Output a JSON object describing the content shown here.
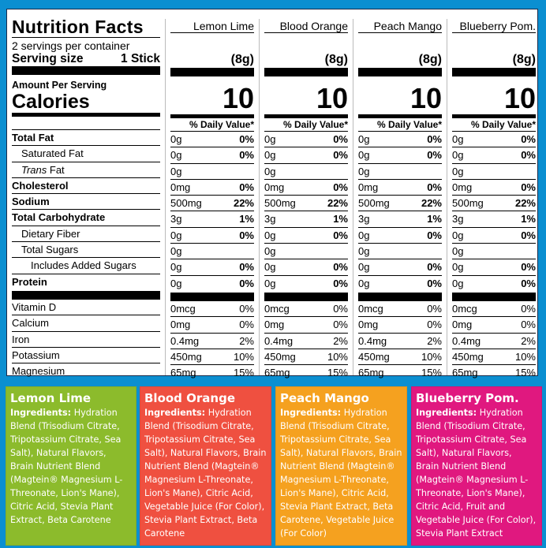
{
  "label": {
    "title": "Nutrition Facts",
    "servings_per_container": "2 servings per container",
    "serving_size_label": "Serving size",
    "serving_size_value": "1 Stick",
    "amount_per_serving": "Amount Per Serving",
    "calories_label": "Calories",
    "daily_value_header": "% Daily Value*",
    "nutrient_rows": [
      {
        "name": "Total Fat",
        "style": "bold"
      },
      {
        "name": "Saturated Fat",
        "style": "indent1"
      },
      {
        "name": "Trans Fat",
        "style": "indent1-italic"
      },
      {
        "name": "Cholesterol",
        "style": "bold"
      },
      {
        "name": "Sodium",
        "style": "bold"
      },
      {
        "name": "Total Carbohydrate",
        "style": "bold"
      },
      {
        "name": "Dietary Fiber",
        "style": "indent1"
      },
      {
        "name": "Total Sugars",
        "style": "indent1"
      },
      {
        "name": "Includes Added Sugars",
        "style": "indent2"
      },
      {
        "name": "Protein",
        "style": "bold"
      }
    ],
    "vitamin_rows": [
      {
        "name": "Vitamin D"
      },
      {
        "name": "Calcium"
      },
      {
        "name": "Iron"
      },
      {
        "name": "Potassium"
      },
      {
        "name": "Magnesium"
      }
    ]
  },
  "flavors": [
    {
      "name": "Lemon Lime",
      "serving_grams": "(8g)",
      "calories": "10",
      "nutrients": [
        [
          "0g",
          "0%"
        ],
        [
          "0g",
          "0%"
        ],
        [
          "0g",
          ""
        ],
        [
          "0mg",
          "0%"
        ],
        [
          "500mg",
          "22%"
        ],
        [
          "3g",
          "1%"
        ],
        [
          "0g",
          "0%"
        ],
        [
          "0g",
          ""
        ],
        [
          "0g",
          "0%"
        ],
        [
          "0g",
          "0%"
        ]
      ],
      "vitamins": [
        [
          "0mcg",
          "0%"
        ],
        [
          "0mg",
          "0%"
        ],
        [
          "0.4mg",
          "2%"
        ],
        [
          "450mg",
          "10%"
        ],
        [
          "65mg",
          "15%"
        ]
      ],
      "color": "#8cbb2c",
      "ingredients_label": "Ingredients:",
      "ingredients": "Hydration Blend (Trisodium Citrate, Tripotassium Citrate, Sea Salt), Natural Flavors, Brain Nutrient Blend (Magtein® Magnesium L-Threonate, Lion's Mane), Citric Acid, Stevia Plant Extract, Beta Carotene"
    },
    {
      "name": "Blood Orange",
      "serving_grams": "(8g)",
      "calories": "10",
      "nutrients": [
        [
          "0g",
          "0%"
        ],
        [
          "0g",
          "0%"
        ],
        [
          "0g",
          ""
        ],
        [
          "0mg",
          "0%"
        ],
        [
          "500mg",
          "22%"
        ],
        [
          "3g",
          "1%"
        ],
        [
          "0g",
          "0%"
        ],
        [
          "0g",
          ""
        ],
        [
          "0g",
          "0%"
        ],
        [
          "0g",
          "0%"
        ]
      ],
      "vitamins": [
        [
          "0mcg",
          "0%"
        ],
        [
          "0mg",
          "0%"
        ],
        [
          "0.4mg",
          "2%"
        ],
        [
          "450mg",
          "10%"
        ],
        [
          "65mg",
          "15%"
        ]
      ],
      "color": "#ef5040",
      "ingredients_label": "Ingredients:",
      "ingredients": "Hydration Blend (Trisodium Citrate, Tripotassium Citrate, Sea Salt), Natural Flavors, Brain Nutrient Blend (Magtein® Magnesium L-Threonate, Lion's Mane), Citric Acid, Vegetable Juice (For Color), Stevia Plant Extract, Beta Carotene"
    },
    {
      "name": "Peach Mango",
      "serving_grams": "(8g)",
      "calories": "10",
      "nutrients": [
        [
          "0g",
          "0%"
        ],
        [
          "0g",
          "0%"
        ],
        [
          "0g",
          ""
        ],
        [
          "0mg",
          "0%"
        ],
        [
          "500mg",
          "22%"
        ],
        [
          "3g",
          "1%"
        ],
        [
          "0g",
          "0%"
        ],
        [
          "0g",
          ""
        ],
        [
          "0g",
          "0%"
        ],
        [
          "0g",
          "0%"
        ]
      ],
      "vitamins": [
        [
          "0mcg",
          "0%"
        ],
        [
          "0mg",
          "0%"
        ],
        [
          "0.4mg",
          "2%"
        ],
        [
          "450mg",
          "10%"
        ],
        [
          "65mg",
          "15%"
        ]
      ],
      "color": "#f5a11f",
      "ingredients_label": "Ingredients:",
      "ingredients": "Hydration Blend (Trisodium Citrate, Tripotassium Citrate, Sea Salt), Natural Flavors, Brain Nutrient Blend (Magtein® Magnesium L-Threonate, Lion's Mane), Citric Acid, Stevia Plant Extract, Beta Carotene, Vegetable Juice (For Color)"
    },
    {
      "name": "Blueberry Pom.",
      "serving_grams": "(8g)",
      "calories": "10",
      "nutrients": [
        [
          "0g",
          "0%"
        ],
        [
          "0g",
          "0%"
        ],
        [
          "0g",
          ""
        ],
        [
          "0mg",
          "0%"
        ],
        [
          "500mg",
          "22%"
        ],
        [
          "3g",
          "1%"
        ],
        [
          "0g",
          "0%"
        ],
        [
          "0g",
          ""
        ],
        [
          "0g",
          "0%"
        ],
        [
          "0g",
          "0%"
        ]
      ],
      "vitamins": [
        [
          "0mcg",
          "0%"
        ],
        [
          "0mg",
          "0%"
        ],
        [
          "0.4mg",
          "2%"
        ],
        [
          "450mg",
          "10%"
        ],
        [
          "65mg",
          "15%"
        ]
      ],
      "color": "#e0187f",
      "ingredients_label": "Ingredients:",
      "ingredients": "Hydration Blend (Trisodium Citrate, Tripotassium Citrate, Sea Salt), Natural Flavors, Brain Nutrient Blend (Magtein® Magnesium L-Threonate, Lion's Mane), Citric Acid, Fruit and Vegetable Juice (For Color), Stevia Plant Extract"
    }
  ],
  "colors": {
    "background": "#0b8fd1",
    "panel": "#ffffff"
  }
}
